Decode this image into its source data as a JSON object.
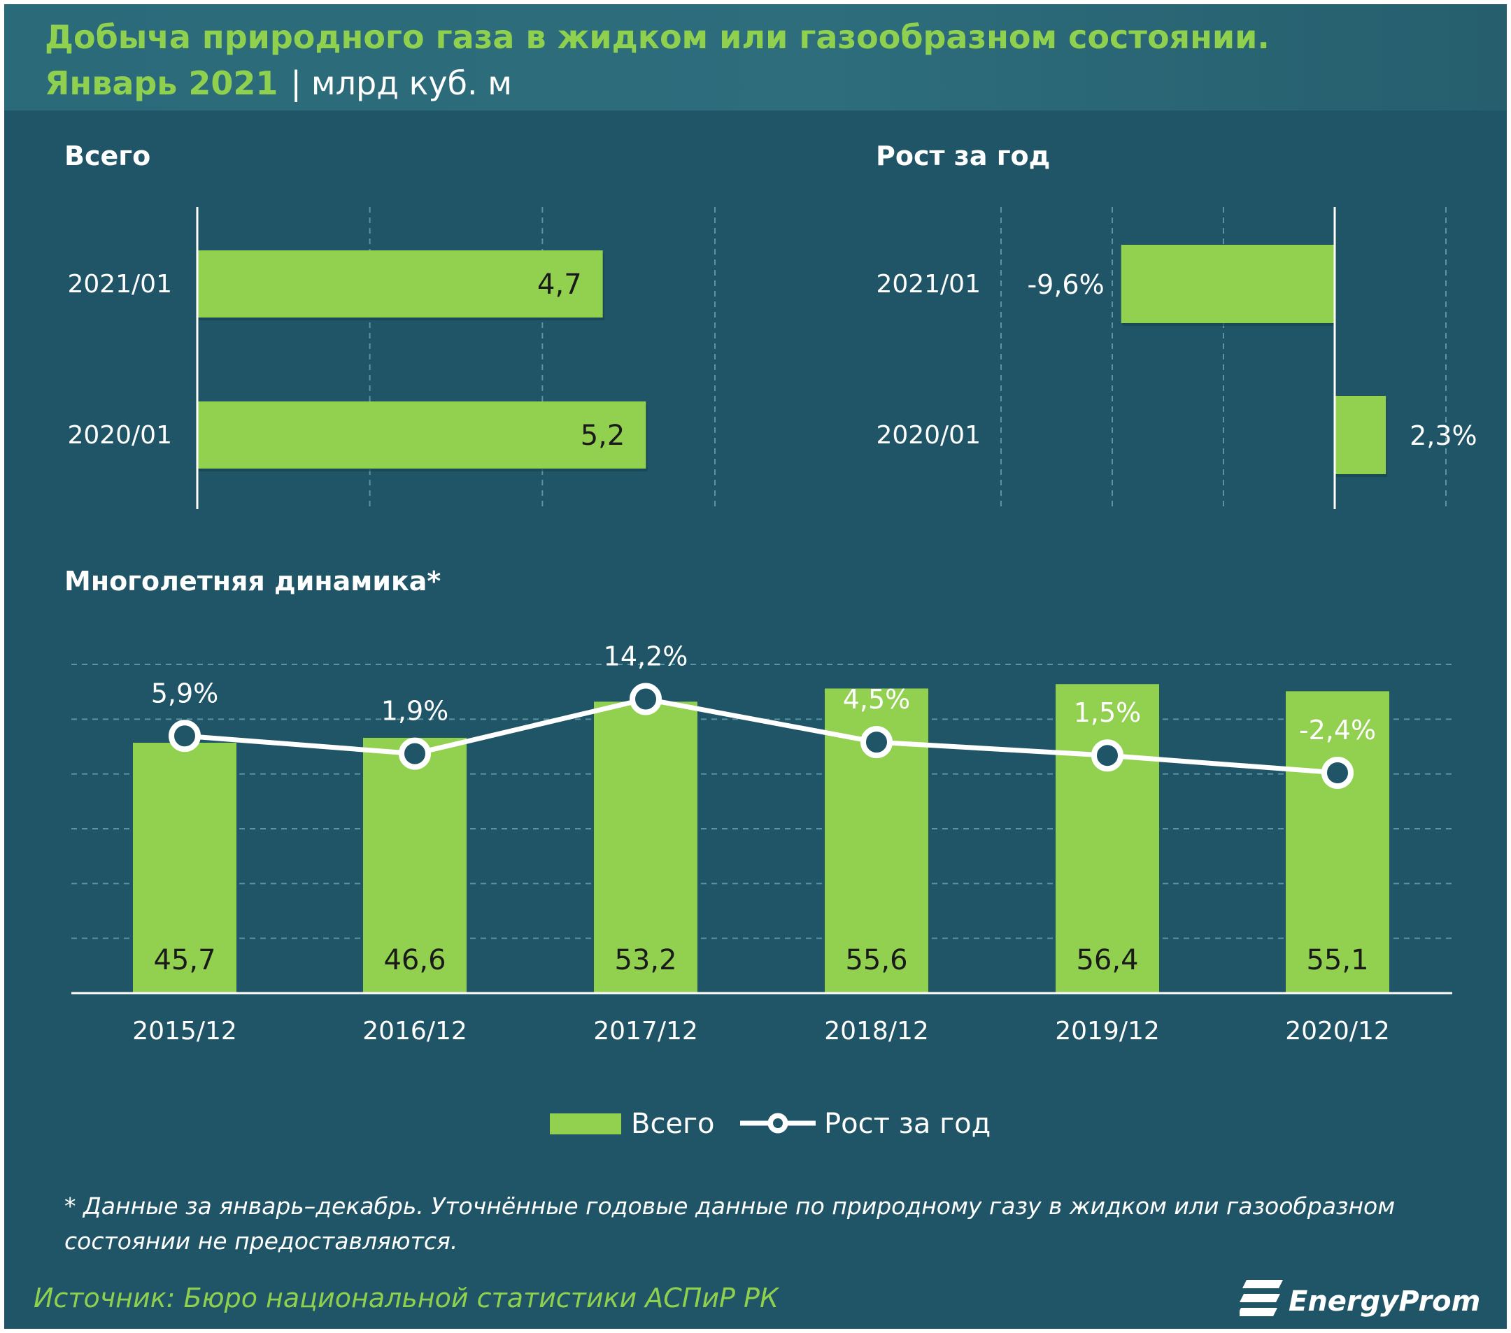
{
  "header": {
    "title_line1": "Добыча природного газа в жидком или газообразном состоянии.",
    "title_period": "Январь 2021",
    "title_sep": "|",
    "title_unit": "млрд куб. м"
  },
  "colors": {
    "background": "#1f5566",
    "bar": "#92d050",
    "accent_text": "#8fd14f",
    "line": "#ffffff"
  },
  "chart_data": [
    {
      "type": "bar",
      "title": "Всего",
      "orientation": "horizontal",
      "categories": [
        "2021/01",
        "2020/01"
      ],
      "values": [
        4.7,
        5.2
      ],
      "labels": [
        "4,7",
        "5,2"
      ],
      "xlim": [
        0,
        6
      ],
      "grid": true
    },
    {
      "type": "bar",
      "title": "Рост за год",
      "orientation": "horizontal",
      "categories": [
        "2021/01",
        "2020/01"
      ],
      "values": [
        -9.6,
        2.3
      ],
      "labels": [
        "-9,6%",
        "2,3%"
      ],
      "xlim": [
        -15,
        5
      ],
      "grid": true
    },
    {
      "type": "bar",
      "title": "Многолетняя  динамика*",
      "categories": [
        "2015/12",
        "2016/12",
        "2017/12",
        "2018/12",
        "2019/12",
        "2020/12"
      ],
      "series": [
        {
          "name": "Всего",
          "type": "bar",
          "values": [
            45.7,
            46.6,
            53.2,
            55.6,
            56.4,
            55.1
          ],
          "labels": [
            "45,7",
            "46,6",
            "53,2",
            "55,6",
            "56,4",
            "55,1"
          ]
        },
        {
          "name": "Рост за год",
          "type": "line",
          "values": [
            5.9,
            1.9,
            14.2,
            4.5,
            1.5,
            -2.4
          ],
          "labels": [
            "5,9%",
            "1,9%",
            "14,2%",
            "4,5%",
            "1,5%",
            "-2,4%"
          ]
        }
      ],
      "ylim": [
        0,
        60
      ],
      "ylim_secondary": [
        -52,
        22
      ],
      "grid": true,
      "legend": "bottom"
    }
  ],
  "legend": {
    "bar_label": "Всего",
    "line_label": "Рост за год"
  },
  "footnote": "* Данные за январь–декабрь. Уточнённые годовые данные по природному газу в жидком или газообразном состоянии не предоставляются.",
  "source": "Источник: Бюро национальной  статистики АСПиР РК",
  "logo_text": "EnergyProm"
}
